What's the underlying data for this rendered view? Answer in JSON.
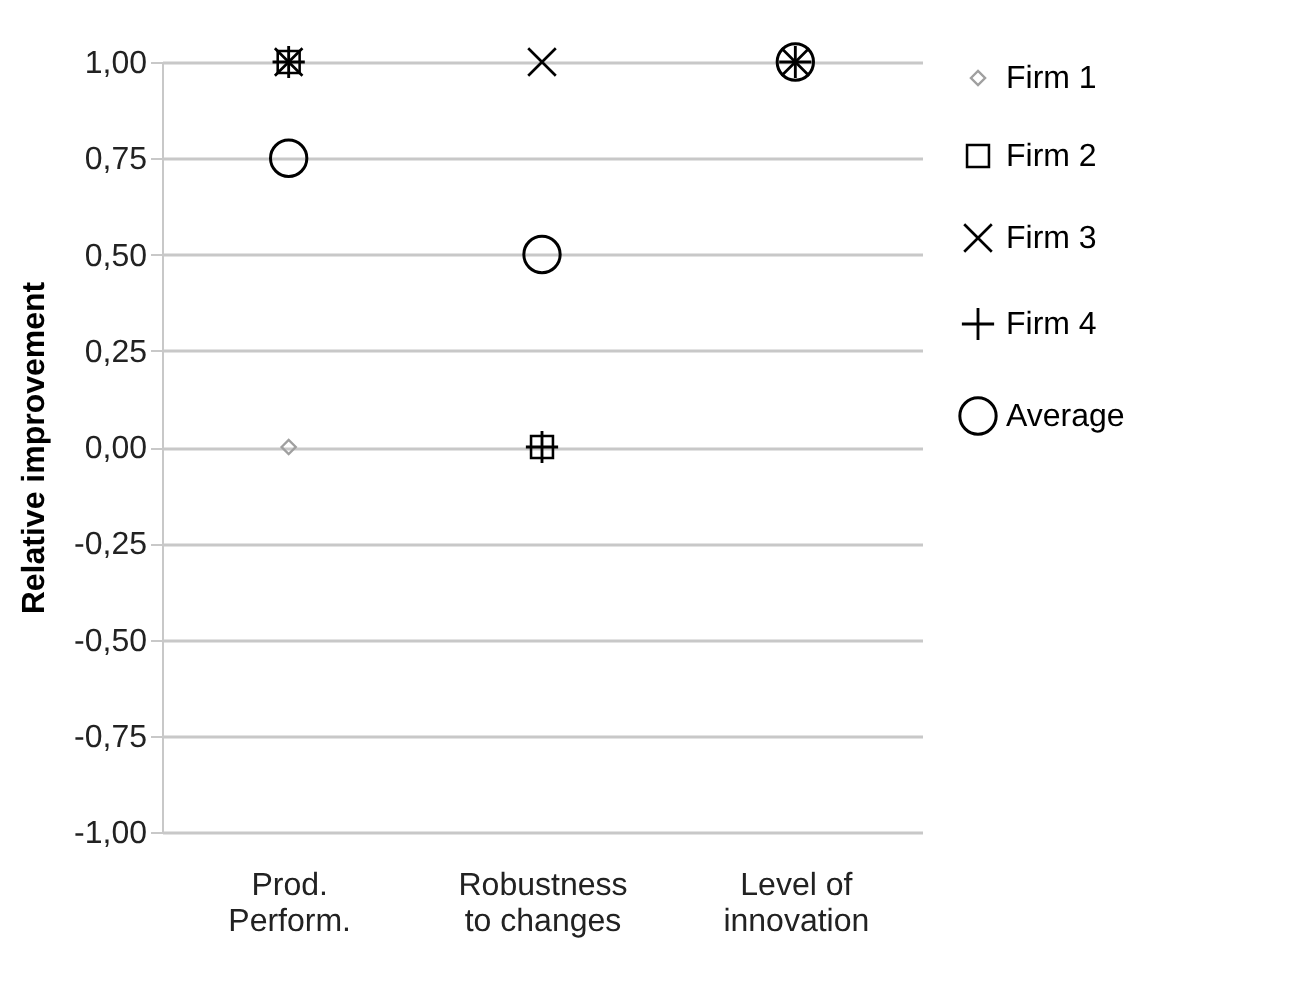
{
  "chart_data": {
    "type": "scatter",
    "ylabel": "Relative improvement",
    "categories": [
      "Prod. Perform.",
      "Robustness to changes",
      "Level of innovation"
    ],
    "ylim": [
      -1,
      1
    ],
    "yticks": [
      {
        "value": 1,
        "label": "1,00"
      },
      {
        "value": 0.75,
        "label": "0,75"
      },
      {
        "value": 0.5,
        "label": "0,50"
      },
      {
        "value": 0.25,
        "label": "0,25"
      },
      {
        "value": 0,
        "label": "0,00"
      },
      {
        "value": -0.25,
        "label": "-0,25"
      },
      {
        "value": -0.5,
        "label": "-0,50"
      },
      {
        "value": -0.75,
        "label": "-0,75"
      },
      {
        "value": -1,
        "label": "-1,00"
      }
    ],
    "grid": "y",
    "legend": "right",
    "series": [
      {
        "name": "Firm 1",
        "color": "#a0a0a0",
        "marker": "diamond",
        "values": [
          0,
          null,
          null
        ]
      },
      {
        "name": "Firm 2",
        "color": "#000000",
        "marker": "square",
        "values": [
          1,
          0,
          null
        ]
      },
      {
        "name": "Firm 3",
        "color": "#000000",
        "marker": "cross",
        "values": [
          1,
          1,
          1
        ]
      },
      {
        "name": "Firm 4",
        "color": "#000000",
        "marker": "plus",
        "values": [
          1,
          0,
          1
        ]
      },
      {
        "name": "Average",
        "color": "#000000",
        "marker": "circle",
        "values": [
          0.75,
          0.5,
          1
        ]
      }
    ]
  }
}
